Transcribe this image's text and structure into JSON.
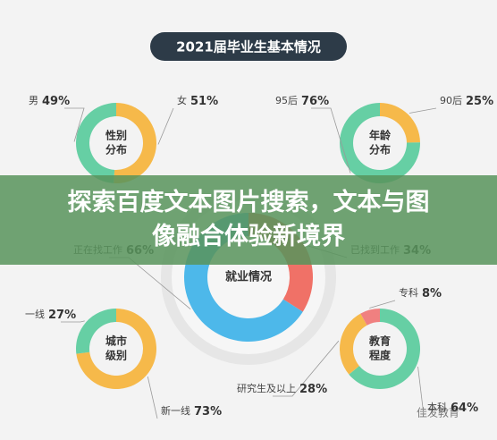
{
  "header": {
    "title": "2021届毕业生基本情况",
    "banner": "探索百度文本图片搜索，文本与图像融合体验新境界",
    "watermark": "佳发教育"
  },
  "chart_data": [
    {
      "type": "pie",
      "center_label": [
        "性别",
        "分布"
      ],
      "categories": [
        "女",
        "男"
      ],
      "values": [
        51,
        49
      ],
      "value_labels": [
        "51%",
        "49%"
      ],
      "colors": [
        "#f6b94a",
        "#66cfa4"
      ]
    },
    {
      "type": "pie",
      "center_label": [
        "年龄",
        "分布"
      ],
      "categories": [
        "90后",
        "95后"
      ],
      "values": [
        25,
        76
      ],
      "value_labels": [
        "25%",
        "76%"
      ],
      "colors": [
        "#f6b94a",
        "#66cfa4"
      ]
    },
    {
      "type": "pie",
      "center_label": [
        "就业情况"
      ],
      "categories": [
        "已找到工作",
        "正在找工作"
      ],
      "values": [
        34,
        66
      ],
      "value_labels": [
        "34%",
        "66%"
      ],
      "colors": [
        "#f07167",
        "#4db8ea"
      ]
    },
    {
      "type": "pie",
      "center_label": [
        "城市",
        "级别"
      ],
      "categories": [
        "新一线",
        "一线"
      ],
      "values": [
        73,
        27
      ],
      "value_labels": [
        "73%",
        "27%"
      ],
      "colors": [
        "#f6b94a",
        "#66cfa4"
      ]
    },
    {
      "type": "pie",
      "center_label": [
        "教育",
        "程度"
      ],
      "categories": [
        "本科",
        "研究生及以上",
        "专科"
      ],
      "values": [
        64,
        28,
        8
      ],
      "value_labels": [
        "64%",
        "28%",
        "8%"
      ],
      "colors": [
        "#66cfa4",
        "#f6b94a",
        "#f08080"
      ]
    }
  ]
}
